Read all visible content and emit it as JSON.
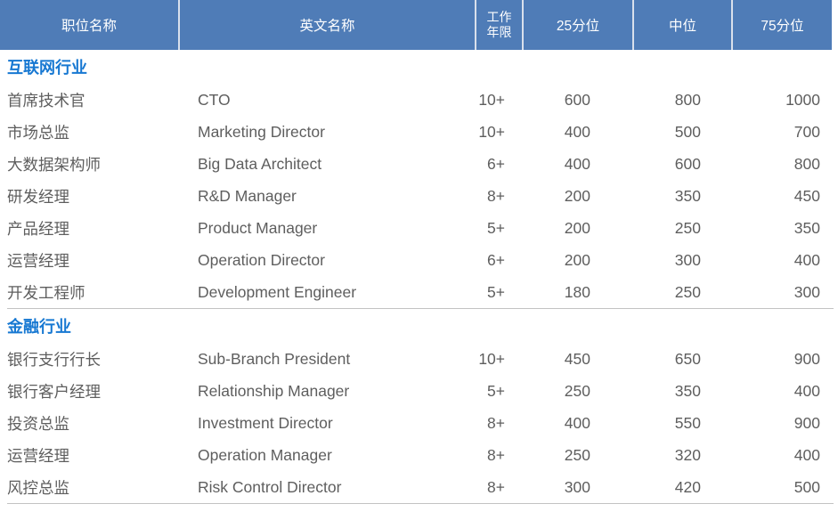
{
  "table": {
    "columns": [
      {
        "id": "position",
        "label": "职位名称"
      },
      {
        "id": "english",
        "label": "英文名称"
      },
      {
        "id": "years",
        "label": "工作年限"
      },
      {
        "id": "p25",
        "label": "25分位"
      },
      {
        "id": "median",
        "label": "中位"
      },
      {
        "id": "p75",
        "label": "75分位"
      }
    ],
    "sections": [
      {
        "id": "internet",
        "title": "互联网行业",
        "rows": [
          {
            "position": "首席技术官",
            "english": "CTO",
            "years": "10+",
            "p25": "600",
            "median": "800",
            "p75": "1000"
          },
          {
            "position": "市场总监",
            "english": "Marketing Director",
            "years": "10+",
            "p25": "400",
            "median": "500",
            "p75": "700"
          },
          {
            "position": "大数据架构师",
            "english": "Big Data Architect",
            "years": "6+",
            "p25": "400",
            "median": "600",
            "p75": "800"
          },
          {
            "position": "研发经理",
            "english": "R&D Manager",
            "years": "8+",
            "p25": "200",
            "median": "350",
            "p75": "450"
          },
          {
            "position": "产品经理",
            "english": "Product Manager",
            "years": "5+",
            "p25": "200",
            "median": "250",
            "p75": "350"
          },
          {
            "position": "运营经理",
            "english": "Operation Director",
            "years": "6+",
            "p25": "200",
            "median": "300",
            "p75": "400"
          },
          {
            "position": "开发工程师",
            "english": "Development Engineer",
            "years": "5+",
            "p25": "180",
            "median": "250",
            "p75": "300"
          }
        ]
      },
      {
        "id": "finance",
        "title": "金融行业",
        "rows": [
          {
            "position": "银行支行行长",
            "english": "Sub-Branch President",
            "years": "10+",
            "p25": "450",
            "median": "650",
            "p75": "900"
          },
          {
            "position": "银行客户经理",
            "english": "Relationship Manager",
            "years": "5+",
            "p25": "250",
            "median": "350",
            "p75": "400"
          },
          {
            "position": "投资总监",
            "english": "Investment Director",
            "years": "8+",
            "p25": "400",
            "median": "550",
            "p75": "900"
          },
          {
            "position": "运营经理",
            "english": "Operation Manager",
            "years": "8+",
            "p25": "250",
            "median": "320",
            "p75": "400"
          },
          {
            "position": "风控总监",
            "english": "Risk Control Director",
            "years": "8+",
            "p25": "300",
            "median": "420",
            "p75": "500"
          }
        ]
      }
    ]
  },
  "colors": {
    "header_bg": "#4f7cb7",
    "header_text": "#ffffff",
    "header_line": "#d9e0ec",
    "section_title": "#1778d2",
    "body_text": "#5e5e5e",
    "divider": "#c2c2c2"
  }
}
